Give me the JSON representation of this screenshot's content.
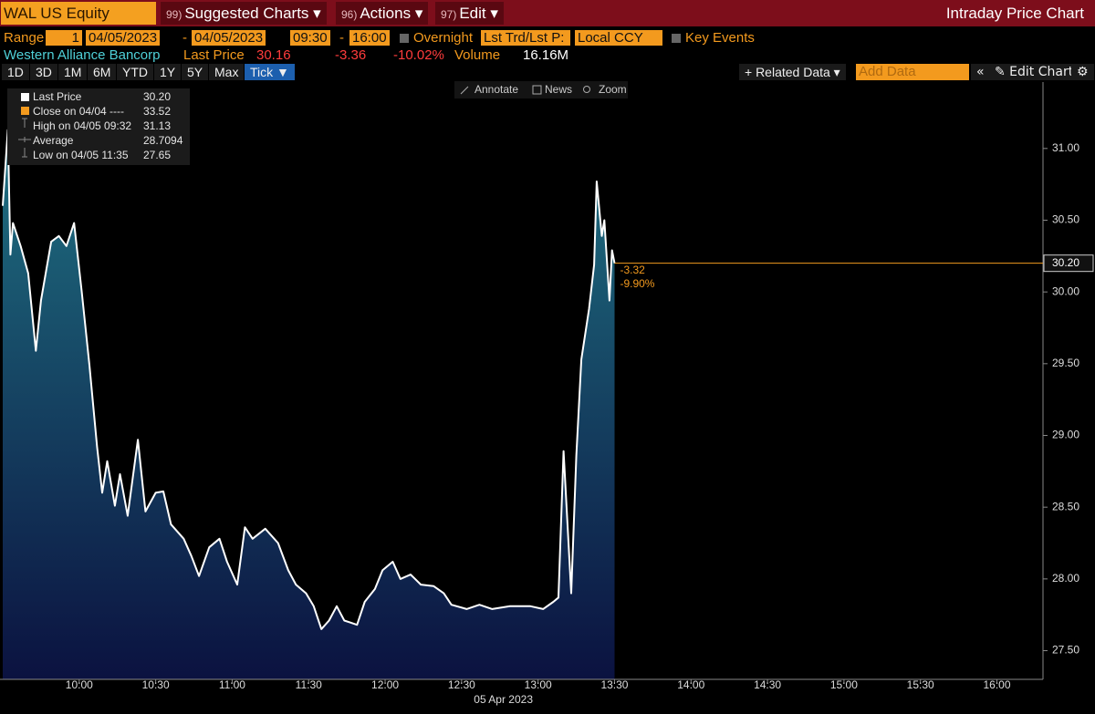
{
  "toolbar": {
    "ticker": "WAL US Equity",
    "menus": [
      {
        "num": "99)",
        "label": "Suggested Charts ▾"
      },
      {
        "num": "96)",
        "label": "Actions ▾"
      },
      {
        "num": "97)",
        "label": "Edit ▾"
      }
    ],
    "title": "Intraday Price Chart"
  },
  "range_row": {
    "label": "Range",
    "period": "1",
    "start_date": "04/05/2023",
    "separator": "-",
    "end_date": "04/05/2023",
    "start_time": "09:30",
    "end_time": "16:00",
    "overnight": "Overnight",
    "price_type": "Lst Trd/Lst P:",
    "currency": "Local CCY",
    "key_events": "Key Events"
  },
  "quote_row": {
    "name": "Western Alliance Bancorp",
    "last_price_label": "Last Price",
    "last_price": "30.16",
    "change": "-3.36",
    "change_pct": "-10.02%",
    "volume_label": "Volume",
    "volume": "16.16M"
  },
  "period_buttons": [
    "1D",
    "3D",
    "1M",
    "6M",
    "YTD",
    "1Y",
    "5Y",
    "Max",
    "Tick ▼"
  ],
  "right_tools": {
    "related": "+ Related Data ▾",
    "add_data": "Add Data",
    "collapse": "«",
    "edit_chart": "✎ Edit Chart",
    "settings": "⚙"
  },
  "chart_tools": [
    "Annotate",
    "News",
    "Zoom"
  ],
  "chart_data": {
    "type": "area",
    "color": "#ffffff",
    "legend": [
      {
        "name": "Last Price",
        "value": "30.20"
      },
      {
        "name": "Close on 04/04 ----",
        "value": "33.52"
      },
      {
        "name": "High on 04/05 09:32",
        "value": "31.13"
      },
      {
        "name": "Average",
        "value": "28.7094"
      },
      {
        "name": "Low on 04/05 11:35",
        "value": "27.65"
      }
    ],
    "last_price": 30.2,
    "change_labels": [
      "-3.32",
      "-9.90%"
    ],
    "x_axis_label": "05 Apr 2023",
    "x": [
      "09:30",
      "09:32",
      "09:33",
      "09:34",
      "09:37",
      "09:40",
      "09:43",
      "09:45",
      "09:49",
      "09:52",
      "09:55",
      "09:58",
      "10:01",
      "10:04",
      "10:07",
      "10:09",
      "10:11",
      "10:14",
      "10:16",
      "10:19",
      "10:23",
      "10:26",
      "10:30",
      "10:33",
      "10:36",
      "10:41",
      "10:44",
      "10:47",
      "10:51",
      "10:55",
      "10:58",
      "11:02",
      "11:05",
      "11:08",
      "11:13",
      "11:18",
      "11:22",
      "11:25",
      "11:29",
      "11:32",
      "11:35",
      "11:38",
      "11:41",
      "11:44",
      "11:49",
      "11:52",
      "11:56",
      "11:59",
      "12:03",
      "12:06",
      "12:10",
      "12:14",
      "12:19",
      "12:23",
      "12:26",
      "12:32",
      "12:37",
      "12:42",
      "12:49",
      "12:57",
      "13:02",
      "13:06",
      "13:08",
      "13:10",
      "13:13",
      "13:15",
      "13:17",
      "13:20",
      "13:22",
      "13:23",
      "13:25",
      "13:26",
      "13:28",
      "13:29",
      "13:30"
    ],
    "values": [
      30.6,
      31.13,
      30.26,
      30.48,
      30.32,
      30.13,
      29.59,
      29.94,
      30.35,
      30.39,
      30.32,
      30.48,
      30.0,
      29.49,
      28.92,
      28.6,
      28.82,
      28.51,
      28.73,
      28.44,
      28.97,
      28.47,
      28.6,
      28.61,
      28.38,
      28.28,
      28.16,
      28.02,
      28.22,
      28.28,
      28.12,
      27.96,
      28.36,
      28.28,
      28.35,
      28.25,
      28.06,
      27.96,
      27.9,
      27.81,
      27.65,
      27.71,
      27.81,
      27.71,
      27.68,
      27.84,
      27.93,
      28.06,
      28.12,
      28.0,
      28.03,
      27.96,
      27.95,
      27.9,
      27.82,
      27.79,
      27.82,
      27.79,
      27.81,
      27.81,
      27.79,
      27.84,
      27.87,
      28.89,
      27.9,
      28.86,
      29.53,
      29.88,
      30.19,
      30.77,
      30.39,
      30.5,
      29.94,
      30.29,
      30.2
    ],
    "xlim": [
      "09:30",
      "16:17"
    ],
    "xticks": [
      "10:00",
      "10:30",
      "11:00",
      "11:30",
      "12:00",
      "12:30",
      "13:00",
      "13:30",
      "14:00",
      "14:30",
      "15:00",
      "15:30",
      "16:00"
    ],
    "ylim": [
      27.3,
      31.45
    ],
    "yticks": [
      {
        "value": 27.5,
        "label": "27.50"
      },
      {
        "value": 28,
        "label": "28.00"
      },
      {
        "value": 28.5,
        "label": "28.50"
      },
      {
        "value": 29,
        "label": "29.00"
      },
      {
        "value": 29.5,
        "label": "29.50"
      },
      {
        "value": 30,
        "label": "30.00"
      },
      {
        "value": 30.5,
        "label": "30.50"
      },
      {
        "value": 31,
        "label": "31.00"
      }
    ]
  }
}
